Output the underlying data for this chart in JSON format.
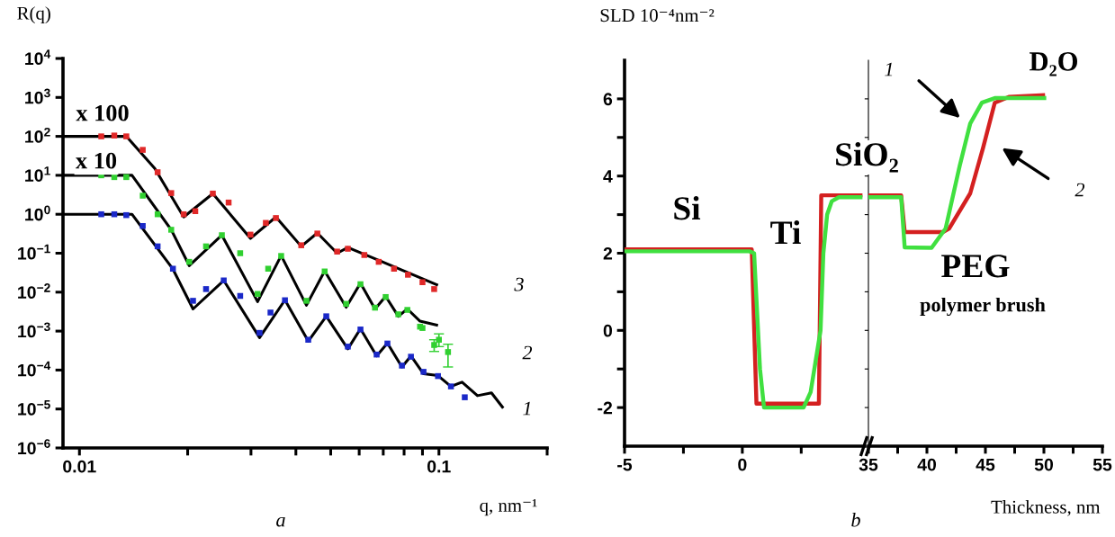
{
  "chart_data": [
    {
      "type": "line",
      "xlabel": "q, nm⁻¹",
      "ylabel": "R(q)",
      "log": "xy",
      "xlim": [
        0.009,
        0.2
      ],
      "ylim": [
        1e-06,
        10000.0
      ],
      "xticks": [
        0.01,
        {
          "value": 0.02,
          "label": null
        },
        {
          "value": 0.03,
          "label": null
        },
        {
          "value": 0.04,
          "label": null
        },
        {
          "value": 0.05,
          "label": null
        },
        {
          "value": 0.06,
          "label": null
        },
        {
          "value": 0.07,
          "label": null
        },
        {
          "value": 0.08,
          "label": null
        },
        {
          "value": 0.09,
          "label": null
        },
        0.1,
        {
          "value": 0.2,
          "label": null
        }
      ],
      "yticks": [
        {
          "value": 1e-06,
          "label": "10$^{−6}$"
        },
        {
          "value": 1e-05,
          "label": "10$^{−5}$"
        },
        {
          "value": 0.0001,
          "label": "10$^{−4}$"
        },
        {
          "value": 0.001,
          "label": "10$^{−3}$"
        },
        {
          "value": 0.01,
          "label": "10$^{−2}$"
        },
        {
          "value": 0.1,
          "label": "10$^{−1}$"
        },
        {
          "value": 1,
          "label": "10$^{0}$"
        },
        {
          "value": 10,
          "label": "10$^{1}$"
        },
        {
          "value": 100,
          "label": "10$^{2}$"
        },
        {
          "value": 1000,
          "label": "10$^{3}$"
        },
        {
          "value": 10000,
          "label": "10$^{4}$"
        }
      ],
      "series": [
        {
          "type": "scatter",
          "marker": "square",
          "color": "#e02828",
          "x": [
            0.0115,
            0.0125,
            0.0135,
            0.015,
            0.0165,
            0.018,
            0.0195,
            0.021,
            0.0235,
            0.026,
            0.0299,
            0.033,
            0.0352,
            0.0414,
            0.0459,
            0.0521,
            0.0558,
            0.062,
            0.068,
            0.075,
            0.082,
            0.09,
            0.097
          ],
          "values": [
            100,
            105,
            100,
            45,
            12,
            3.5,
            1.0,
            1.2,
            3.4,
            2.0,
            0.3,
            0.6,
            0.8,
            0.16,
            0.32,
            0.11,
            0.13,
            0.09,
            0.06,
            0.04,
            0.028,
            0.018,
            0.012
          ]
        },
        {
          "type": "scatter",
          "marker": "square",
          "color": "#30d030",
          "x": [
            0.0115,
            0.0125,
            0.0135,
            0.015,
            0.0165,
            0.018,
            0.0202,
            0.0225,
            0.0249,
            0.028,
            0.0313,
            0.0335,
            0.0364,
            0.0428,
            0.0481,
            0.0552,
            0.0605,
            0.0664,
            0.0711,
            0.0771,
            0.0817,
            0.0886,
            0.09,
            0.097,
            0.1,
            0.106
          ],
          "values": [
            10,
            9,
            9,
            3,
            1,
            0.4,
            0.06,
            0.15,
            0.29,
            0.1,
            0.009,
            0.04,
            0.085,
            0.006,
            0.034,
            0.005,
            0.016,
            0.004,
            0.0075,
            0.0027,
            0.0035,
            0.0013,
            0.0012,
            0.00044,
            0.0006,
            0.00029
          ],
          "errors": [
            null,
            null,
            null,
            null,
            null,
            null,
            null,
            null,
            null,
            null,
            null,
            null,
            null,
            null,
            null,
            null,
            null,
            null,
            null,
            null,
            null,
            null,
            null,
            [
              0.0003,
              0.0006
            ],
            [
              0.0004,
              0.00085
            ],
            [
              0.00012,
              0.00046
            ]
          ]
        },
        {
          "type": "scatter",
          "marker": "square",
          "color": "#1a28c8",
          "x": [
            0.0115,
            0.0125,
            0.0135,
            0.015,
            0.0165,
            0.0182,
            0.0207,
            0.0225,
            0.0252,
            0.028,
            0.0317,
            0.034,
            0.0373,
            0.0433,
            0.0486,
            0.0558,
            0.0605,
            0.0671,
            0.0719,
            0.0789,
            0.0836,
            0.0906,
            0.0994,
            0.108,
            0.118
          ],
          "values": [
            1.0,
            1.0,
            0.95,
            0.5,
            0.15,
            0.04,
            0.006,
            0.012,
            0.02,
            0.008,
            0.0009,
            0.003,
            0.0062,
            0.0006,
            0.0024,
            0.0004,
            0.0011,
            0.00025,
            0.00048,
            0.00013,
            0.00022,
            9e-05,
            7e-05,
            3.8e-05,
            2e-05
          ]
        },
        {
          "type": "line",
          "color": "#000000",
          "x": [
            0.009,
            0.0135,
            0.0162,
            0.0195,
            0.0235,
            0.0299,
            0.0352,
            0.0414,
            0.0459,
            0.0521,
            0.0558,
            0.068,
            0.0994
          ],
          "values": [
            100,
            100,
            15,
            0.85,
            3.4,
            0.24,
            0.85,
            0.15,
            0.33,
            0.1,
            0.14,
            0.066,
            0.015
          ]
        },
        {
          "type": "line",
          "color": "#000000",
          "x": [
            0.009,
            0.014,
            0.018,
            0.0202,
            0.0249,
            0.0313,
            0.0364,
            0.0428,
            0.0481,
            0.0552,
            0.0605,
            0.0664,
            0.0711,
            0.0771,
            0.0817,
            0.0886,
            0.0994
          ],
          "values": [
            10,
            10,
            0.4,
            0.048,
            0.29,
            0.0057,
            0.087,
            0.0046,
            0.035,
            0.0041,
            0.017,
            0.0037,
            0.0078,
            0.0024,
            0.0037,
            0.0018,
            0.0014
          ]
        },
        {
          "type": "line",
          "color": "#000000",
          "x": [
            0.009,
            0.014,
            0.0182,
            0.0207,
            0.0252,
            0.0317,
            0.0373,
            0.0433,
            0.0486,
            0.0558,
            0.0605,
            0.0671,
            0.0719,
            0.0789,
            0.0836,
            0.0906,
            0.0994,
            0.108,
            0.116,
            0.128,
            0.14,
            0.151
          ],
          "values": [
            1,
            1,
            0.039,
            0.0037,
            0.02,
            0.00068,
            0.0063,
            0.00055,
            0.0024,
            0.00035,
            0.00115,
            0.00023,
            0.00049,
            0.00012,
            0.00023,
            8e-05,
            7.2e-05,
            3.8e-05,
            4.9e-05,
            2.2e-05,
            2.6e-05,
            1.05e-05
          ]
        }
      ],
      "annotations": [
        "x 100",
        "x 10",
        "3",
        "2",
        "1",
        "a"
      ]
    },
    {
      "type": "line",
      "ylabel": "SLD 10⁻⁴nm⁻²",
      "xlim": [
        -5,
        5.2
      ],
      "ylim": [
        -3,
        7
      ],
      "xticks": [
        -5,
        {
          "value": -2.5,
          "label": null
        },
        0,
        {
          "value": 2.5,
          "label": null
        }
      ],
      "yticks": [
        -2,
        {
          "value": -1,
          "label": null
        },
        0,
        {
          "value": 1,
          "label": null
        },
        2,
        {
          "value": 3,
          "label": null
        },
        4,
        {
          "value": 5,
          "label": null
        },
        6
      ],
      "series": [
        {
          "color": "#d42020",
          "x": [
            -5,
            0.4,
            0.6,
            3.25,
            3.35,
            5.1
          ],
          "values": [
            2.1,
            2.1,
            -1.9,
            -1.9,
            3.5,
            3.5
          ]
        },
        {
          "color": "#40e040",
          "x": [
            -5,
            0.3,
            0.5,
            0.75,
            0.92,
            2.6,
            2.9,
            3.32,
            3.44,
            3.6,
            3.8,
            4.1,
            5.1
          ],
          "values": [
            2.05,
            2.05,
            2.0,
            -1.0,
            -2.0,
            -2.0,
            -1.6,
            0,
            2.0,
            3.0,
            3.35,
            3.45,
            3.45
          ]
        }
      ],
      "annotations": [
        "Si",
        "Ti",
        "b"
      ]
    },
    {
      "type": "line",
      "xlabel": "Thickness, nm",
      "xlim": [
        35,
        55
      ],
      "ylim": [
        -3,
        7
      ],
      "tick_labels": "x",
      "xticks": [
        35,
        {
          "value": 37.5,
          "label": null
        },
        40,
        {
          "value": 42.5,
          "label": null
        },
        45,
        {
          "value": 47.5,
          "label": null
        },
        50,
        {
          "value": 52.5,
          "label": null
        },
        55
      ],
      "yticks": [
        -2,
        {
          "value": -1,
          "label": null
        },
        0,
        {
          "value": 1,
          "label": null
        },
        2,
        {
          "value": 3,
          "label": null
        },
        4,
        {
          "value": 5,
          "label": null
        },
        6
      ],
      "series": [
        {
          "color": "#d42020",
          "x": [
            35,
            37.8,
            38.1,
            41.4,
            41.9,
            43.7,
            44.8,
            45.8,
            47.0,
            50.1
          ],
          "values": [
            3.5,
            3.5,
            2.55,
            2.55,
            2.64,
            3.55,
            4.73,
            5.9,
            6.05,
            6.1
          ]
        },
        {
          "color": "#40e040",
          "x": [
            35,
            37.8,
            38.1,
            40.4,
            41.6,
            42.8,
            43.7,
            44.7,
            45.8,
            50.2
          ],
          "values": [
            3.45,
            3.45,
            2.15,
            2.14,
            2.64,
            4.26,
            5.36,
            5.9,
            6.02,
            6.02
          ]
        }
      ],
      "annotations": [
        "SiO₂",
        "PEG",
        "polymer brush",
        "D₂O",
        "1",
        "2"
      ]
    }
  ]
}
